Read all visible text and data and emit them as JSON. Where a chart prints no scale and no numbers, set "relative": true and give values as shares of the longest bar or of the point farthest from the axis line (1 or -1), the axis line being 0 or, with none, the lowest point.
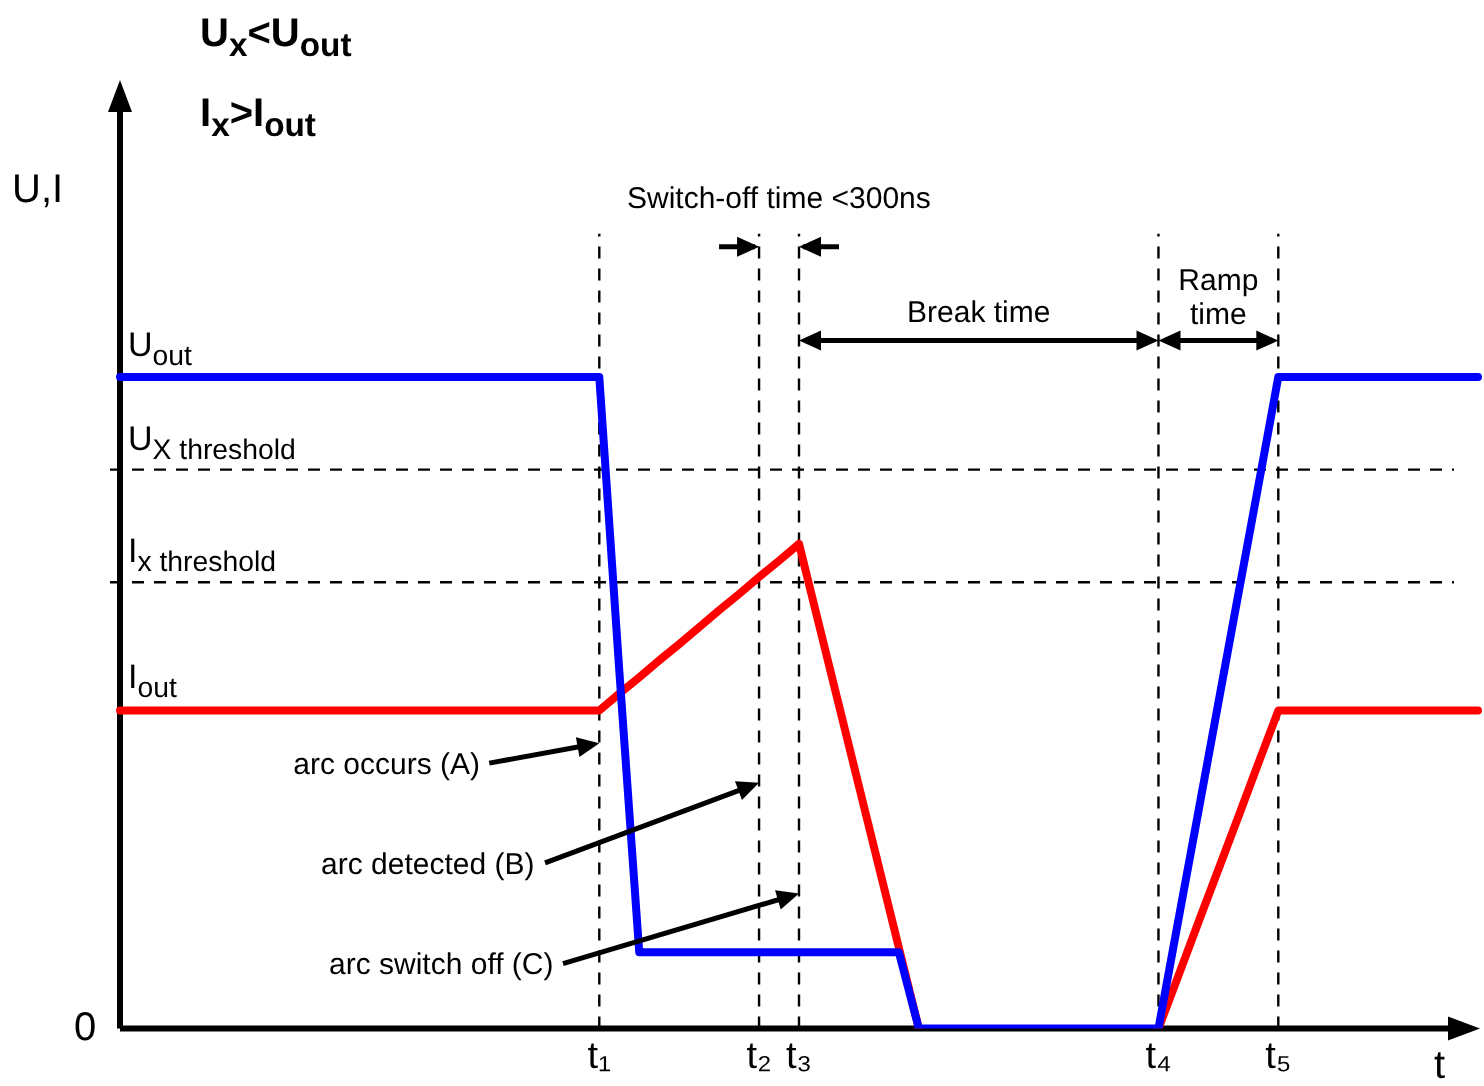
{
  "chart_data": {
    "type": "line",
    "relative": true,
    "title": "U$_{x}$<U$_{out}$",
    "subtitle": "I$_{x}$>I$_{out}$",
    "ylabel": "U,I",
    "xlabel": "t",
    "categories": [
      null,
      null,
      null,
      null,
      null,
      null,
      null,
      null,
      null,
      null,
      null,
      null,
      null,
      null,
      null,
      null,
      null,
      null,
      null,
      null,
      null,
      null,
      null,
      null,
      "t₁",
      null,
      null,
      null,
      null,
      null,
      null,
      null,
      "t₂",
      null,
      "t₃",
      null,
      null,
      null,
      null,
      null,
      null,
      null,
      null,
      null,
      null,
      null,
      null,
      null,
      null,
      null,
      null,
      null,
      "t₄",
      null,
      null,
      null,
      null,
      null,
      "t₅",
      null,
      null,
      null,
      null,
      null,
      null,
      null,
      null,
      null,
      null
    ],
    "series": [
      {
        "name": "U$_{out}$",
        "color": "#0000ff",
        "values": [
          1,
          1,
          1,
          1,
          1,
          1,
          1,
          1,
          1,
          1,
          1,
          1,
          1,
          1,
          1,
          1,
          1,
          1,
          1,
          1,
          1,
          1,
          1,
          1,
          1,
          0.55,
          0.117,
          0.117,
          0.117,
          0.117,
          0.117,
          0.117,
          0.117,
          0.117,
          0.117,
          0.117,
          0.117,
          0.117,
          0.117,
          0.117,
          0,
          0,
          0,
          0,
          0,
          0,
          0,
          0,
          0,
          0,
          0,
          0,
          0,
          0.167,
          0.333,
          0.5,
          0.667,
          0.833,
          1,
          1,
          1,
          1,
          1,
          1,
          1,
          1,
          1,
          1,
          1
        ]
      },
      {
        "name": "I$_{out}$",
        "color": "#ff0000",
        "values": [
          0.488,
          0.488,
          0.488,
          0.488,
          0.488,
          0.488,
          0.488,
          0.488,
          0.488,
          0.488,
          0.488,
          0.488,
          0.488,
          0.488,
          0.488,
          0.488,
          0.488,
          0.488,
          0.488,
          0.488,
          0.488,
          0.488,
          0.488,
          0.488,
          0.488,
          0.514,
          0.539,
          0.565,
          0.59,
          0.616,
          0.642,
          0.667,
          0.693,
          0.718,
          0.744,
          0.62,
          0.496,
          0.372,
          0.248,
          0.124,
          0,
          null,
          null,
          null,
          null,
          null,
          null,
          null,
          null,
          null,
          null,
          null,
          0,
          0.081,
          0.163,
          0.244,
          0.325,
          0.407,
          0.488,
          0.488,
          0.488,
          0.488,
          0.488,
          0.488,
          0.488,
          0.488,
          0.488,
          0.488,
          0.488
        ]
      }
    ],
    "ref_lines": [
      {
        "axis": "y",
        "value": 0.858,
        "label": "U$_{X threshold}$",
        "line_style": "dashed"
      },
      {
        "axis": "y",
        "value": 0.685,
        "label": "I$_{x threshold}$",
        "line_style": "dashed"
      },
      {
        "axis": "x",
        "value": "t₁",
        "line_style": "dashed"
      },
      {
        "axis": "x",
        "value": "t₂",
        "line_style": "dashed"
      },
      {
        "axis": "x",
        "value": "t₃",
        "line_style": "dashed"
      },
      {
        "axis": "x",
        "value": "t₄",
        "line_style": "dashed"
      },
      {
        "axis": "x",
        "value": "t₅",
        "line_style": "dashed"
      }
    ],
    "annotations": [
      "0",
      "Switch-off time <300ns",
      "Break time",
      "Ramp time",
      "arc occurs (A)",
      "arc detected (B)",
      "arc switch off (C)"
    ],
    "legend": false,
    "grid": false,
    "marker": "none",
    "line_style": "solid",
    "tick_labels": "x"
  }
}
